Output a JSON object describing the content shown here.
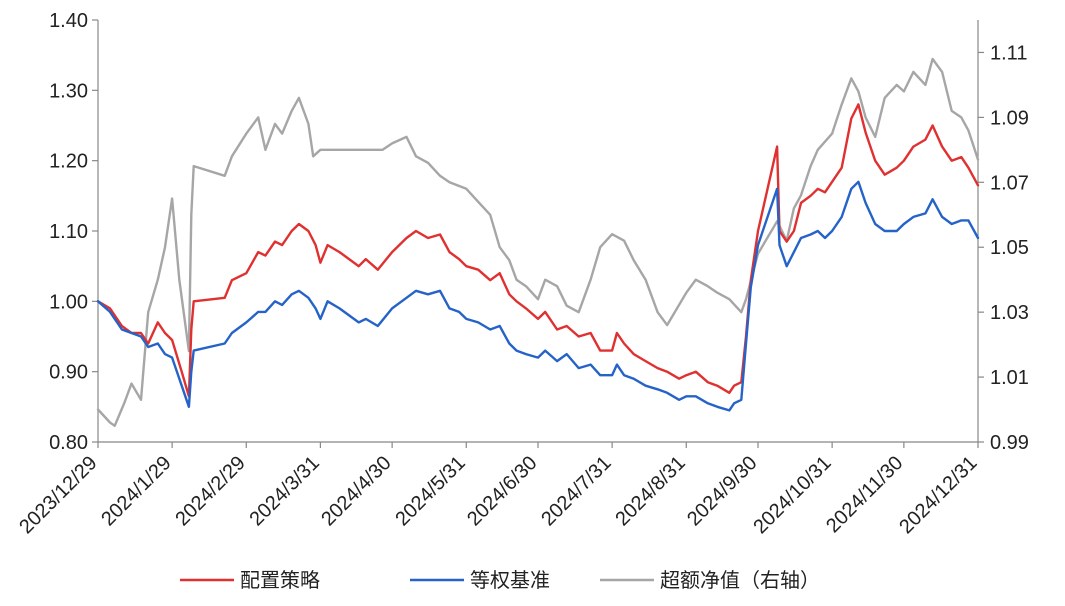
{
  "chart_data": {
    "type": "line",
    "title": "",
    "xlabel": "",
    "ylabel": "",
    "y2label": "",
    "ylim": [
      0.8,
      1.4
    ],
    "y2lim": [
      0.99,
      1.12
    ],
    "yticks": [
      "0.80",
      "0.90",
      "1.00",
      "1.10",
      "1.20",
      "1.30",
      "1.40"
    ],
    "y2ticks": [
      "0.99",
      "1.01",
      "1.03",
      "1.05",
      "1.07",
      "1.09",
      "1.11"
    ],
    "xticks": [
      "2023/12/29",
      "2024/1/29",
      "2024/2/29",
      "2024/3/31",
      "2024/4/30",
      "2024/5/31",
      "2024/6/30",
      "2024/7/31",
      "2024/8/31",
      "2024/9/30",
      "2024/10/31",
      "2024/11/30",
      "2024/12/31"
    ],
    "grid": false,
    "legend_position": "bottom",
    "series": [
      {
        "name": "配置策略",
        "axis": "left",
        "color": "#e03030",
        "points": [
          [
            "2023/12/29",
            1.0
          ],
          [
            "2024/1/3",
            0.99
          ],
          [
            "2024/1/8",
            0.965
          ],
          [
            "2024/1/12",
            0.955
          ],
          [
            "2024/1/16",
            0.955
          ],
          [
            "2024/1/19",
            0.94
          ],
          [
            "2024/1/23",
            0.97
          ],
          [
            "2024/1/26",
            0.955
          ],
          [
            "2024/1/29",
            0.945
          ],
          [
            "2024/2/2",
            0.9
          ],
          [
            "2024/2/5",
            0.865
          ],
          [
            "2024/2/6",
            0.96
          ],
          [
            "2024/2/7",
            1.0
          ],
          [
            "2024/2/20",
            1.005
          ],
          [
            "2024/2/23",
            1.03
          ],
          [
            "2024/2/29",
            1.04
          ],
          [
            "2024/3/5",
            1.07
          ],
          [
            "2024/3/8",
            1.065
          ],
          [
            "2024/3/12",
            1.085
          ],
          [
            "2024/3/15",
            1.08
          ],
          [
            "2024/3/19",
            1.1
          ],
          [
            "2024/3/22",
            1.11
          ],
          [
            "2024/3/26",
            1.1
          ],
          [
            "2024/3/29",
            1.08
          ],
          [
            "2024/3/31",
            1.055
          ],
          [
            "2024/4/3",
            1.08
          ],
          [
            "2024/4/8",
            1.07
          ],
          [
            "2024/4/12",
            1.06
          ],
          [
            "2024/4/16",
            1.05
          ],
          [
            "2024/4/19",
            1.06
          ],
          [
            "2024/4/24",
            1.045
          ],
          [
            "2024/4/30",
            1.07
          ],
          [
            "2024/5/6",
            1.09
          ],
          [
            "2024/5/10",
            1.1
          ],
          [
            "2024/5/15",
            1.09
          ],
          [
            "2024/5/20",
            1.095
          ],
          [
            "2024/5/24",
            1.07
          ],
          [
            "2024/5/28",
            1.06
          ],
          [
            "2024/5/31",
            1.05
          ],
          [
            "2024/6/5",
            1.045
          ],
          [
            "2024/6/10",
            1.03
          ],
          [
            "2024/6/14",
            1.04
          ],
          [
            "2024/6/18",
            1.01
          ],
          [
            "2024/6/21",
            1.0
          ],
          [
            "2024/6/25",
            0.99
          ],
          [
            "2024/6/30",
            0.975
          ],
          [
            "2024/7/3",
            0.985
          ],
          [
            "2024/7/8",
            0.96
          ],
          [
            "2024/7/12",
            0.965
          ],
          [
            "2024/7/17",
            0.95
          ],
          [
            "2024/7/22",
            0.955
          ],
          [
            "2024/7/26",
            0.93
          ],
          [
            "2024/7/31",
            0.93
          ],
          [
            "2024/8/2",
            0.955
          ],
          [
            "2024/8/5",
            0.94
          ],
          [
            "2024/8/9",
            0.925
          ],
          [
            "2024/8/14",
            0.915
          ],
          [
            "2024/8/19",
            0.905
          ],
          [
            "2024/8/23",
            0.9
          ],
          [
            "2024/8/28",
            0.89
          ],
          [
            "2024/8/31",
            0.895
          ],
          [
            "2024/9/4",
            0.9
          ],
          [
            "2024/9/9",
            0.885
          ],
          [
            "2024/9/13",
            0.88
          ],
          [
            "2024/9/18",
            0.87
          ],
          [
            "2024/9/20",
            0.88
          ],
          [
            "2024/9/23",
            0.885
          ],
          [
            "2024/9/25",
            0.95
          ],
          [
            "2024/9/27",
            1.03
          ],
          [
            "2024/9/30",
            1.1
          ],
          [
            "2024/10/8",
            1.22
          ],
          [
            "2024/10/9",
            1.1
          ],
          [
            "2024/10/12",
            1.085
          ],
          [
            "2024/10/15",
            1.1
          ],
          [
            "2024/10/18",
            1.14
          ],
          [
            "2024/10/22",
            1.15
          ],
          [
            "2024/10/25",
            1.16
          ],
          [
            "2024/10/28",
            1.155
          ],
          [
            "2024/10/31",
            1.17
          ],
          [
            "2024/11/4",
            1.19
          ],
          [
            "2024/11/8",
            1.26
          ],
          [
            "2024/11/11",
            1.28
          ],
          [
            "2024/11/14",
            1.24
          ],
          [
            "2024/11/18",
            1.2
          ],
          [
            "2024/11/22",
            1.18
          ],
          [
            "2024/11/27",
            1.19
          ],
          [
            "2024/11/30",
            1.2
          ],
          [
            "2024/12/4",
            1.22
          ],
          [
            "2024/12/9",
            1.23
          ],
          [
            "2024/12/12",
            1.25
          ],
          [
            "2024/12/16",
            1.22
          ],
          [
            "2024/12/20",
            1.2
          ],
          [
            "2024/12/24",
            1.205
          ],
          [
            "2024/12/27",
            1.19
          ],
          [
            "2024/12/31",
            1.165
          ]
        ]
      },
      {
        "name": "等权基准",
        "axis": "left",
        "color": "#2563c8",
        "points": [
          [
            "2023/12/29",
            1.0
          ],
          [
            "2024/1/3",
            0.985
          ],
          [
            "2024/1/8",
            0.96
          ],
          [
            "2024/1/12",
            0.955
          ],
          [
            "2024/1/16",
            0.95
          ],
          [
            "2024/1/19",
            0.935
          ],
          [
            "2024/1/23",
            0.94
          ],
          [
            "2024/1/26",
            0.925
          ],
          [
            "2024/1/29",
            0.92
          ],
          [
            "2024/2/2",
            0.88
          ],
          [
            "2024/2/5",
            0.85
          ],
          [
            "2024/2/6",
            0.9
          ],
          [
            "2024/2/7",
            0.93
          ],
          [
            "2024/2/20",
            0.94
          ],
          [
            "2024/2/23",
            0.955
          ],
          [
            "2024/2/29",
            0.97
          ],
          [
            "2024/3/5",
            0.985
          ],
          [
            "2024/3/8",
            0.985
          ],
          [
            "2024/3/12",
            1.0
          ],
          [
            "2024/3/15",
            0.995
          ],
          [
            "2024/3/19",
            1.01
          ],
          [
            "2024/3/22",
            1.015
          ],
          [
            "2024/3/26",
            1.005
          ],
          [
            "2024/3/29",
            0.99
          ],
          [
            "2024/3/31",
            0.975
          ],
          [
            "2024/4/3",
            1.0
          ],
          [
            "2024/4/8",
            0.99
          ],
          [
            "2024/4/12",
            0.98
          ],
          [
            "2024/4/16",
            0.97
          ],
          [
            "2024/4/19",
            0.975
          ],
          [
            "2024/4/24",
            0.965
          ],
          [
            "2024/4/30",
            0.99
          ],
          [
            "2024/5/6",
            1.005
          ],
          [
            "2024/5/10",
            1.015
          ],
          [
            "2024/5/15",
            1.01
          ],
          [
            "2024/5/20",
            1.015
          ],
          [
            "2024/5/24",
            0.99
          ],
          [
            "2024/5/28",
            0.985
          ],
          [
            "2024/5/31",
            0.975
          ],
          [
            "2024/6/5",
            0.97
          ],
          [
            "2024/6/10",
            0.96
          ],
          [
            "2024/6/14",
            0.965
          ],
          [
            "2024/6/18",
            0.94
          ],
          [
            "2024/6/21",
            0.93
          ],
          [
            "2024/6/25",
            0.925
          ],
          [
            "2024/6/30",
            0.92
          ],
          [
            "2024/7/3",
            0.93
          ],
          [
            "2024/7/8",
            0.915
          ],
          [
            "2024/7/12",
            0.925
          ],
          [
            "2024/7/17",
            0.905
          ],
          [
            "2024/7/22",
            0.91
          ],
          [
            "2024/7/26",
            0.895
          ],
          [
            "2024/7/31",
            0.895
          ],
          [
            "2024/8/2",
            0.91
          ],
          [
            "2024/8/5",
            0.895
          ],
          [
            "2024/8/9",
            0.89
          ],
          [
            "2024/8/14",
            0.88
          ],
          [
            "2024/8/19",
            0.875
          ],
          [
            "2024/8/23",
            0.87
          ],
          [
            "2024/8/28",
            0.86
          ],
          [
            "2024/8/31",
            0.865
          ],
          [
            "2024/9/4",
            0.865
          ],
          [
            "2024/9/9",
            0.855
          ],
          [
            "2024/9/13",
            0.85
          ],
          [
            "2024/9/18",
            0.845
          ],
          [
            "2024/9/20",
            0.855
          ],
          [
            "2024/9/23",
            0.86
          ],
          [
            "2024/9/25",
            0.94
          ],
          [
            "2024/9/27",
            1.02
          ],
          [
            "2024/9/30",
            1.08
          ],
          [
            "2024/10/8",
            1.16
          ],
          [
            "2024/10/9",
            1.08
          ],
          [
            "2024/10/12",
            1.05
          ],
          [
            "2024/10/15",
            1.07
          ],
          [
            "2024/10/18",
            1.09
          ],
          [
            "2024/10/22",
            1.095
          ],
          [
            "2024/10/25",
            1.1
          ],
          [
            "2024/10/28",
            1.09
          ],
          [
            "2024/10/31",
            1.1
          ],
          [
            "2024/11/4",
            1.12
          ],
          [
            "2024/11/8",
            1.16
          ],
          [
            "2024/11/11",
            1.17
          ],
          [
            "2024/11/14",
            1.14
          ],
          [
            "2024/11/18",
            1.11
          ],
          [
            "2024/11/22",
            1.1
          ],
          [
            "2024/11/27",
            1.1
          ],
          [
            "2024/11/30",
            1.11
          ],
          [
            "2024/12/4",
            1.12
          ],
          [
            "2024/12/9",
            1.125
          ],
          [
            "2024/12/12",
            1.145
          ],
          [
            "2024/12/16",
            1.12
          ],
          [
            "2024/12/20",
            1.11
          ],
          [
            "2024/12/24",
            1.115
          ],
          [
            "2024/12/27",
            1.115
          ],
          [
            "2024/12/31",
            1.09
          ]
        ]
      },
      {
        "name": "超额净值（右轴）",
        "axis": "right",
        "color": "#a6a6a6",
        "points": [
          [
            "2023/12/29",
            1.0
          ],
          [
            "2024/1/3",
            0.996
          ],
          [
            "2024/1/5",
            0.995
          ],
          [
            "2024/1/9",
            1.002
          ],
          [
            "2024/1/12",
            1.008
          ],
          [
            "2024/1/16",
            1.003
          ],
          [
            "2024/1/19",
            1.03
          ],
          [
            "2024/1/23",
            1.04
          ],
          [
            "2024/1/26",
            1.05
          ],
          [
            "2024/1/29",
            1.065
          ],
          [
            "2024/2/1",
            1.04
          ],
          [
            "2024/2/5",
            1.018
          ],
          [
            "2024/2/6",
            1.06
          ],
          [
            "2024/2/7",
            1.075
          ],
          [
            "2024/2/20",
            1.072
          ],
          [
            "2024/2/23",
            1.078
          ],
          [
            "2024/2/29",
            1.085
          ],
          [
            "2024/3/5",
            1.09
          ],
          [
            "2024/3/8",
            1.08
          ],
          [
            "2024/3/12",
            1.088
          ],
          [
            "2024/3/15",
            1.085
          ],
          [
            "2024/3/19",
            1.092
          ],
          [
            "2024/3/22",
            1.096
          ],
          [
            "2024/3/26",
            1.088
          ],
          [
            "2024/3/28",
            1.078
          ],
          [
            "2024/3/31",
            1.08
          ],
          [
            "2024/4/10",
            1.08
          ],
          [
            "2024/4/20",
            1.08
          ],
          [
            "2024/4/26",
            1.08
          ],
          [
            "2024/4/30",
            1.082
          ],
          [
            "2024/5/6",
            1.084
          ],
          [
            "2024/5/10",
            1.078
          ],
          [
            "2024/5/15",
            1.076
          ],
          [
            "2024/5/20",
            1.072
          ],
          [
            "2024/5/24",
            1.07
          ],
          [
            "2024/5/31",
            1.068
          ],
          [
            "2024/6/5",
            1.064
          ],
          [
            "2024/6/10",
            1.06
          ],
          [
            "2024/6/14",
            1.05
          ],
          [
            "2024/6/18",
            1.046
          ],
          [
            "2024/6/21",
            1.04
          ],
          [
            "2024/6/25",
            1.038
          ],
          [
            "2024/6/30",
            1.034
          ],
          [
            "2024/7/3",
            1.04
          ],
          [
            "2024/7/8",
            1.038
          ],
          [
            "2024/7/12",
            1.032
          ],
          [
            "2024/7/17",
            1.03
          ],
          [
            "2024/7/22",
            1.04
          ],
          [
            "2024/7/26",
            1.05
          ],
          [
            "2024/7/31",
            1.054
          ],
          [
            "2024/8/5",
            1.052
          ],
          [
            "2024/8/9",
            1.046
          ],
          [
            "2024/8/14",
            1.04
          ],
          [
            "2024/8/19",
            1.03
          ],
          [
            "2024/8/23",
            1.026
          ],
          [
            "2024/8/31",
            1.036
          ],
          [
            "2024/9/4",
            1.04
          ],
          [
            "2024/9/9",
            1.038
          ],
          [
            "2024/9/13",
            1.036
          ],
          [
            "2024/9/18",
            1.034
          ],
          [
            "2024/9/23",
            1.03
          ],
          [
            "2024/9/25",
            1.034
          ],
          [
            "2024/9/30",
            1.048
          ],
          [
            "2024/10/8",
            1.058
          ],
          [
            "2024/10/12",
            1.052
          ],
          [
            "2024/10/15",
            1.062
          ],
          [
            "2024/10/18",
            1.066
          ],
          [
            "2024/10/22",
            1.075
          ],
          [
            "2024/10/25",
            1.08
          ],
          [
            "2024/10/31",
            1.085
          ],
          [
            "2024/11/4",
            1.094
          ],
          [
            "2024/11/8",
            1.102
          ],
          [
            "2024/11/11",
            1.098
          ],
          [
            "2024/11/14",
            1.09
          ],
          [
            "2024/11/18",
            1.084
          ],
          [
            "2024/11/22",
            1.096
          ],
          [
            "2024/11/27",
            1.1
          ],
          [
            "2024/11/30",
            1.098
          ],
          [
            "2024/12/4",
            1.104
          ],
          [
            "2024/12/9",
            1.1
          ],
          [
            "2024/12/12",
            1.108
          ],
          [
            "2024/12/16",
            1.104
          ],
          [
            "2024/12/20",
            1.092
          ],
          [
            "2024/12/24",
            1.09
          ],
          [
            "2024/12/27",
            1.086
          ],
          [
            "2024/12/31",
            1.077
          ]
        ]
      }
    ]
  }
}
